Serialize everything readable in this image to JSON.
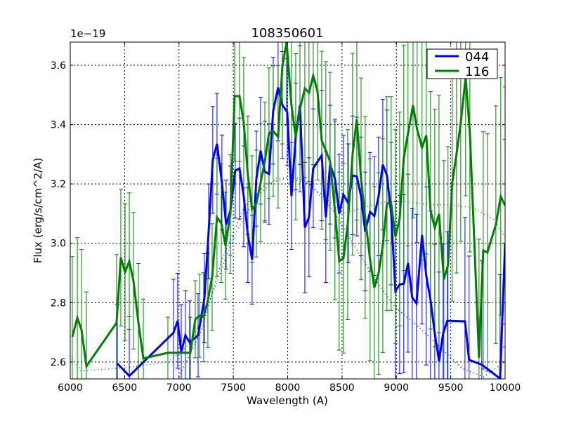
{
  "chart_data": {
    "type": "line",
    "title": "108350601",
    "xlabel": "Wavelength (A)",
    "ylabel": "Flux (erg/s/cm^2/A)",
    "offset_label": "1e−19",
    "xlim": [
      6000,
      10000
    ],
    "ylim": [
      2.543,
      3.678
    ],
    "xticks": [
      6000,
      6500,
      7000,
      7500,
      8000,
      8500,
      9000,
      9500,
      10000
    ],
    "xtick_labels": [
      "6000",
      "6500",
      "7000",
      "7500",
      "8000",
      "8500",
      "9000",
      "9500",
      "10000"
    ],
    "yticks": [
      2.6,
      2.8,
      3.0,
      3.2,
      3.4,
      3.6
    ],
    "ytick_labels": [
      "2.6",
      "2.8",
      "3.0",
      "3.2",
      "3.4",
      "3.6"
    ],
    "grid": true,
    "legend_position": "top-right",
    "series": [
      {
        "name": "044",
        "color": "#0000ff",
        "x": [
          6433,
          6543,
          6950,
          6988,
          7021,
          7059,
          7098,
          7176,
          7234,
          7273,
          7311,
          7350,
          7395,
          7434,
          7473,
          7518,
          7557,
          7596,
          7634,
          7673,
          7712,
          7751,
          7790,
          7828,
          7867,
          7912,
          7951,
          7996,
          8035,
          8074,
          8113,
          8158,
          8196,
          8235,
          8313,
          8351,
          8390,
          8435,
          8474,
          8513,
          8558,
          8597,
          8636,
          8675,
          8713,
          8758,
          8797,
          8836,
          8875,
          8913,
          8952,
          8991,
          9030,
          9068,
          9107,
          9146,
          9185,
          9236,
          9275,
          9314,
          9353,
          9392,
          9430,
          9469,
          9631,
          9669,
          9786,
          9954,
          10000
        ],
        "y": [
          2.595,
          2.553,
          2.699,
          2.739,
          2.633,
          2.69,
          2.666,
          2.69,
          2.815,
          3.04,
          3.281,
          3.335,
          3.205,
          3.063,
          3.11,
          3.245,
          3.252,
          3.158,
          3.028,
          2.945,
          3.218,
          3.312,
          3.241,
          3.234,
          3.447,
          3.525,
          3.466,
          3.442,
          3.159,
          3.36,
          3.466,
          3.053,
          3.088,
          3.253,
          3.296,
          3.088,
          3.265,
          3.218,
          3.1,
          3.164,
          3.135,
          3.229,
          3.225,
          3.158,
          3.04,
          3.106,
          3.092,
          3.158,
          3.265,
          3.229,
          3.1,
          2.84,
          2.861,
          2.864,
          2.933,
          2.817,
          2.798,
          3.028,
          2.89,
          2.809,
          2.697,
          2.603,
          2.697,
          2.739,
          2.737,
          2.607,
          2.591,
          2.544,
          3.0
        ],
        "yerr": [
          0.2,
          0.2,
          0.18,
          0.16,
          0.16,
          0.15,
          0.14,
          0.14,
          0.15,
          0.16,
          0.18,
          0.17,
          0.16,
          0.15,
          0.15,
          0.16,
          0.17,
          0.17,
          0.16,
          0.15,
          0.16,
          0.18,
          0.17,
          0.17,
          0.18,
          0.18,
          0.18,
          0.18,
          0.18,
          0.18,
          0.2,
          0.22,
          0.2,
          0.2,
          0.22,
          0.22,
          0.2,
          0.2,
          0.2,
          0.2,
          0.2,
          0.2,
          0.2,
          0.2,
          0.2,
          0.2,
          0.2,
          0.2,
          0.22,
          0.22,
          0.24,
          0.3,
          0.3,
          0.3,
          0.3,
          0.3,
          0.3,
          0.3,
          0.3,
          0.3,
          0.3,
          0.3,
          0.3,
          0.3,
          0.35,
          0.35,
          0.35,
          0.35,
          0.35
        ]
      },
      {
        "name": "116",
        "color": "#008000",
        "x": [
          6019,
          6065,
          6103,
          6149,
          6426,
          6465,
          6504,
          6543,
          6581,
          6627,
          6672,
          6898,
          7105,
          7150,
          7189,
          7227,
          7266,
          7305,
          7350,
          7389,
          7428,
          7473,
          7512,
          7557,
          7596,
          7634,
          7673,
          7712,
          7751,
          7790,
          7828,
          7867,
          7912,
          7951,
          7990,
          8035,
          8074,
          8113,
          8158,
          8196,
          8235,
          8274,
          8313,
          8351,
          8390,
          8435,
          8474,
          8513,
          8552,
          8597,
          8636,
          8675,
          8713,
          8758,
          8797,
          8836,
          8875,
          8913,
          8952,
          8991,
          9030,
          9068,
          9107,
          9153,
          9191,
          9236,
          9275,
          9314,
          9353,
          9392,
          9437,
          9475,
          9514,
          9553,
          9592,
          9637,
          9676,
          9760,
          9799,
          9837,
          9915,
          9960,
          10000
        ],
        "y": [
          2.685,
          2.749,
          2.709,
          2.586,
          2.732,
          2.952,
          2.903,
          2.94,
          2.874,
          2.732,
          2.612,
          2.631,
          2.631,
          2.744,
          2.756,
          2.751,
          2.808,
          2.886,
          3.087,
          3.068,
          2.992,
          3.099,
          3.496,
          3.496,
          3.406,
          3.229,
          3.115,
          3.134,
          3.205,
          3.276,
          3.371,
          3.378,
          3.359,
          3.595,
          3.678,
          3.465,
          3.359,
          3.453,
          3.522,
          3.508,
          3.565,
          3.513,
          3.347,
          3.312,
          3.276,
          3.111,
          2.94,
          2.95,
          3.063,
          3.3,
          3.418,
          3.217,
          3.087,
          2.945,
          2.851,
          2.898,
          2.992,
          3.134,
          3.134,
          3.023,
          3.082,
          3.288,
          3.371,
          3.465,
          3.383,
          3.323,
          3.364,
          3.111,
          3.052,
          3.099,
          2.879,
          2.926,
          3.205,
          3.3,
          3.406,
          3.56,
          3.371,
          2.614,
          2.976,
          2.969,
          3.063,
          3.158,
          3.127
        ],
        "yerr": [
          0.27,
          0.27,
          0.27,
          0.25,
          0.23,
          0.23,
          0.23,
          0.23,
          0.23,
          0.2,
          0.2,
          0.12,
          0.12,
          0.13,
          0.14,
          0.15,
          0.16,
          0.18,
          0.2,
          0.2,
          0.18,
          0.2,
          0.22,
          0.22,
          0.22,
          0.2,
          0.18,
          0.18,
          0.2,
          0.2,
          0.22,
          0.22,
          0.24,
          0.26,
          0.28,
          0.26,
          0.28,
          0.28,
          0.3,
          0.3,
          0.3,
          0.3,
          0.3,
          0.3,
          0.3,
          0.3,
          0.3,
          0.32,
          0.32,
          0.34,
          0.34,
          0.34,
          0.34,
          0.34,
          0.34,
          0.34,
          0.36,
          0.36,
          0.36,
          0.36,
          0.36,
          0.38,
          0.38,
          0.38,
          0.38,
          0.38,
          0.4,
          0.4,
          0.4,
          0.4,
          0.4,
          0.4,
          0.4,
          0.4,
          0.4,
          0.4,
          0.4,
          0.4,
          0.4,
          0.4,
          0.4,
          0.4,
          0.4
        ]
      }
    ],
    "fits": [
      {
        "name": "044-fit",
        "color": "#0000ff",
        "x": [
          7000,
          7200,
          7400,
          7600,
          7800,
          8000,
          8200,
          8400,
          8600,
          8800,
          9000,
          9200,
          9400,
          9600,
          9800,
          10000
        ],
        "y": [
          2.55,
          2.7,
          2.95,
          3.12,
          3.2,
          3.22,
          3.2,
          3.12,
          3.0,
          2.88,
          2.78,
          2.72,
          2.65,
          2.58,
          2.55,
          2.6
        ]
      },
      {
        "name": "116-fit",
        "color": "#008000",
        "x": [
          6000,
          6100,
          6500,
          6900,
          7100,
          7300,
          7500,
          7700,
          7900,
          8100,
          8300,
          8500,
          8700,
          8900,
          9100,
          9300,
          9500,
          9700,
          9900,
          10000
        ],
        "y": [
          2.62,
          2.57,
          2.58,
          2.6,
          2.66,
          2.82,
          3.02,
          3.15,
          3.22,
          3.22,
          3.17,
          3.1,
          3.12,
          3.14,
          3.14,
          3.13,
          3.13,
          3.12,
          3.08,
          3.02
        ]
      }
    ]
  }
}
